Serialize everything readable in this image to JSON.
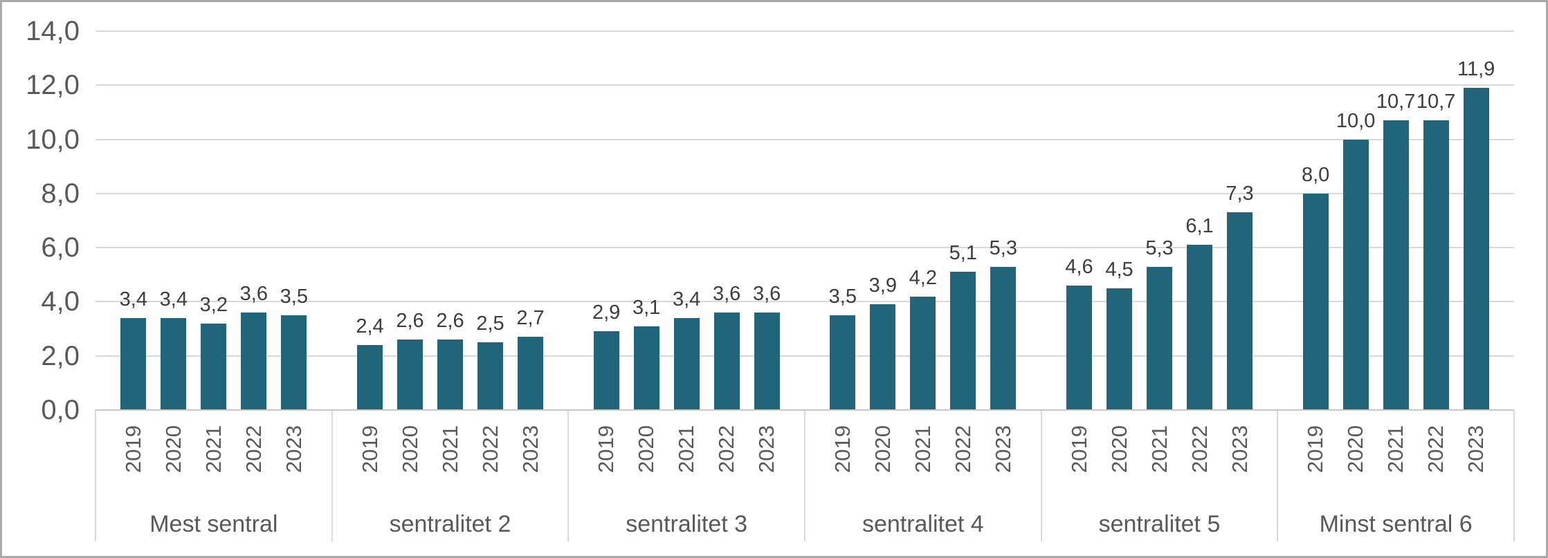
{
  "figure": {
    "background": "#ffffff",
    "border_color": "#a9a9a9"
  },
  "chart_data": {
    "type": "bar",
    "title": "",
    "xlabel": "",
    "ylabel": "",
    "ylim": [
      0,
      14
    ],
    "y_tick_step": 2,
    "y_ticks": [
      "0,0",
      "2,0",
      "4,0",
      "6,0",
      "8,0",
      "10,0",
      "12,0",
      "14,0"
    ],
    "grid": true,
    "legend": false,
    "decimal_separator": ",",
    "bar_color": "#21657a",
    "categories": [
      "Mest sentral",
      "sentralitet 2",
      "sentralitet 3",
      "sentralitet 4",
      "sentralitet 5",
      "Minst sentral 6"
    ],
    "years": [
      "2019",
      "2020",
      "2021",
      "2022",
      "2023"
    ],
    "series": [
      {
        "group": "Mest sentral",
        "values": [
          3.4,
          3.4,
          3.2,
          3.6,
          3.5
        ],
        "labels": [
          "3,4",
          "3,4",
          "3,2",
          "3,6",
          "3,5"
        ]
      },
      {
        "group": "sentralitet 2",
        "values": [
          2.4,
          2.6,
          2.6,
          2.5,
          2.7
        ],
        "labels": [
          "2,4",
          "2,6",
          "2,6",
          "2,5",
          "2,7"
        ]
      },
      {
        "group": "sentralitet 3",
        "values": [
          2.9,
          3.1,
          3.4,
          3.6,
          3.6
        ],
        "labels": [
          "2,9",
          "3,1",
          "3,4",
          "3,6",
          "3,6"
        ]
      },
      {
        "group": "sentralitet 4",
        "values": [
          3.5,
          3.9,
          4.2,
          5.1,
          5.3
        ],
        "labels": [
          "3,5",
          "3,9",
          "4,2",
          "5,1",
          "5,3"
        ]
      },
      {
        "group": "sentralitet 5",
        "values": [
          4.6,
          4.5,
          5.3,
          6.1,
          7.3
        ],
        "labels": [
          "4,6",
          "4,5",
          "5,3",
          "6,1",
          "7,3"
        ]
      },
      {
        "group": "Minst sentral 6",
        "values": [
          8.0,
          10.0,
          10.7,
          10.7,
          11.9
        ],
        "labels": [
          "8,0",
          "10,0",
          "10,7",
          "10,7",
          "11,9"
        ]
      }
    ]
  },
  "colors": {
    "bar": "#21657a",
    "gridline": "#d9d9d9",
    "axis_line": "#c6c6c6",
    "separator": "#d9d9d9",
    "tick_text": "#595959",
    "data_label_text": "#3d3d3d"
  }
}
